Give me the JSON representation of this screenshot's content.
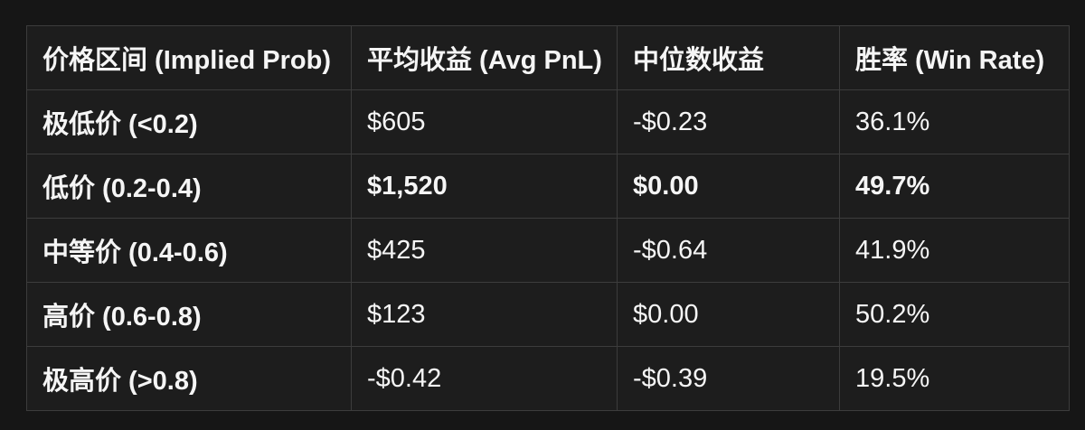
{
  "page": {
    "background_color": "#161616",
    "text_color": "#f5f5f5",
    "cell_background_color": "#1d1d1d",
    "border_color": "#3c3c3c"
  },
  "chart_data": {
    "type": "table",
    "title": "",
    "columns": [
      "价格区间 (Implied Prob)",
      "平均收益 (Avg PnL)",
      "中位数收益",
      "胜率 (Win Rate)"
    ],
    "rows": [
      [
        "极低价 (<0.2)",
        "$605",
        "-$0.23",
        "36.1%"
      ],
      [
        "低价 (0.2-0.4)",
        "$1,520",
        "$0.00",
        "49.7%"
      ],
      [
        "中等价 (0.4-0.6)",
        "$425",
        "-$0.64",
        "41.9%"
      ],
      [
        "高价 (0.6-0.8)",
        "$123",
        "$0.00",
        "50.2%"
      ],
      [
        "极高价 (>0.8)",
        "-$0.42",
        "-$0.39",
        "19.5%"
      ]
    ],
    "emphasized_row_index": 1,
    "numeric": {
      "categories": [
        "极低价 (<0.2)",
        "低价 (0.2-0.4)",
        "中等价 (0.4-0.6)",
        "高价 (0.6-0.8)",
        "极高价 (>0.8)"
      ],
      "series": [
        {
          "name": "平均收益 (Avg PnL) USD",
          "values": [
            605,
            1520,
            425,
            123,
            -0.42
          ]
        },
        {
          "name": "中位数收益 USD",
          "values": [
            -0.23,
            0.0,
            -0.64,
            0.0,
            -0.39
          ]
        },
        {
          "name": "胜率 (Win Rate) %",
          "values": [
            36.1,
            49.7,
            41.9,
            50.2,
            19.5
          ]
        }
      ]
    },
    "layout": {
      "grid": "on",
      "header_bold": true,
      "first_column_bold": true
    }
  }
}
